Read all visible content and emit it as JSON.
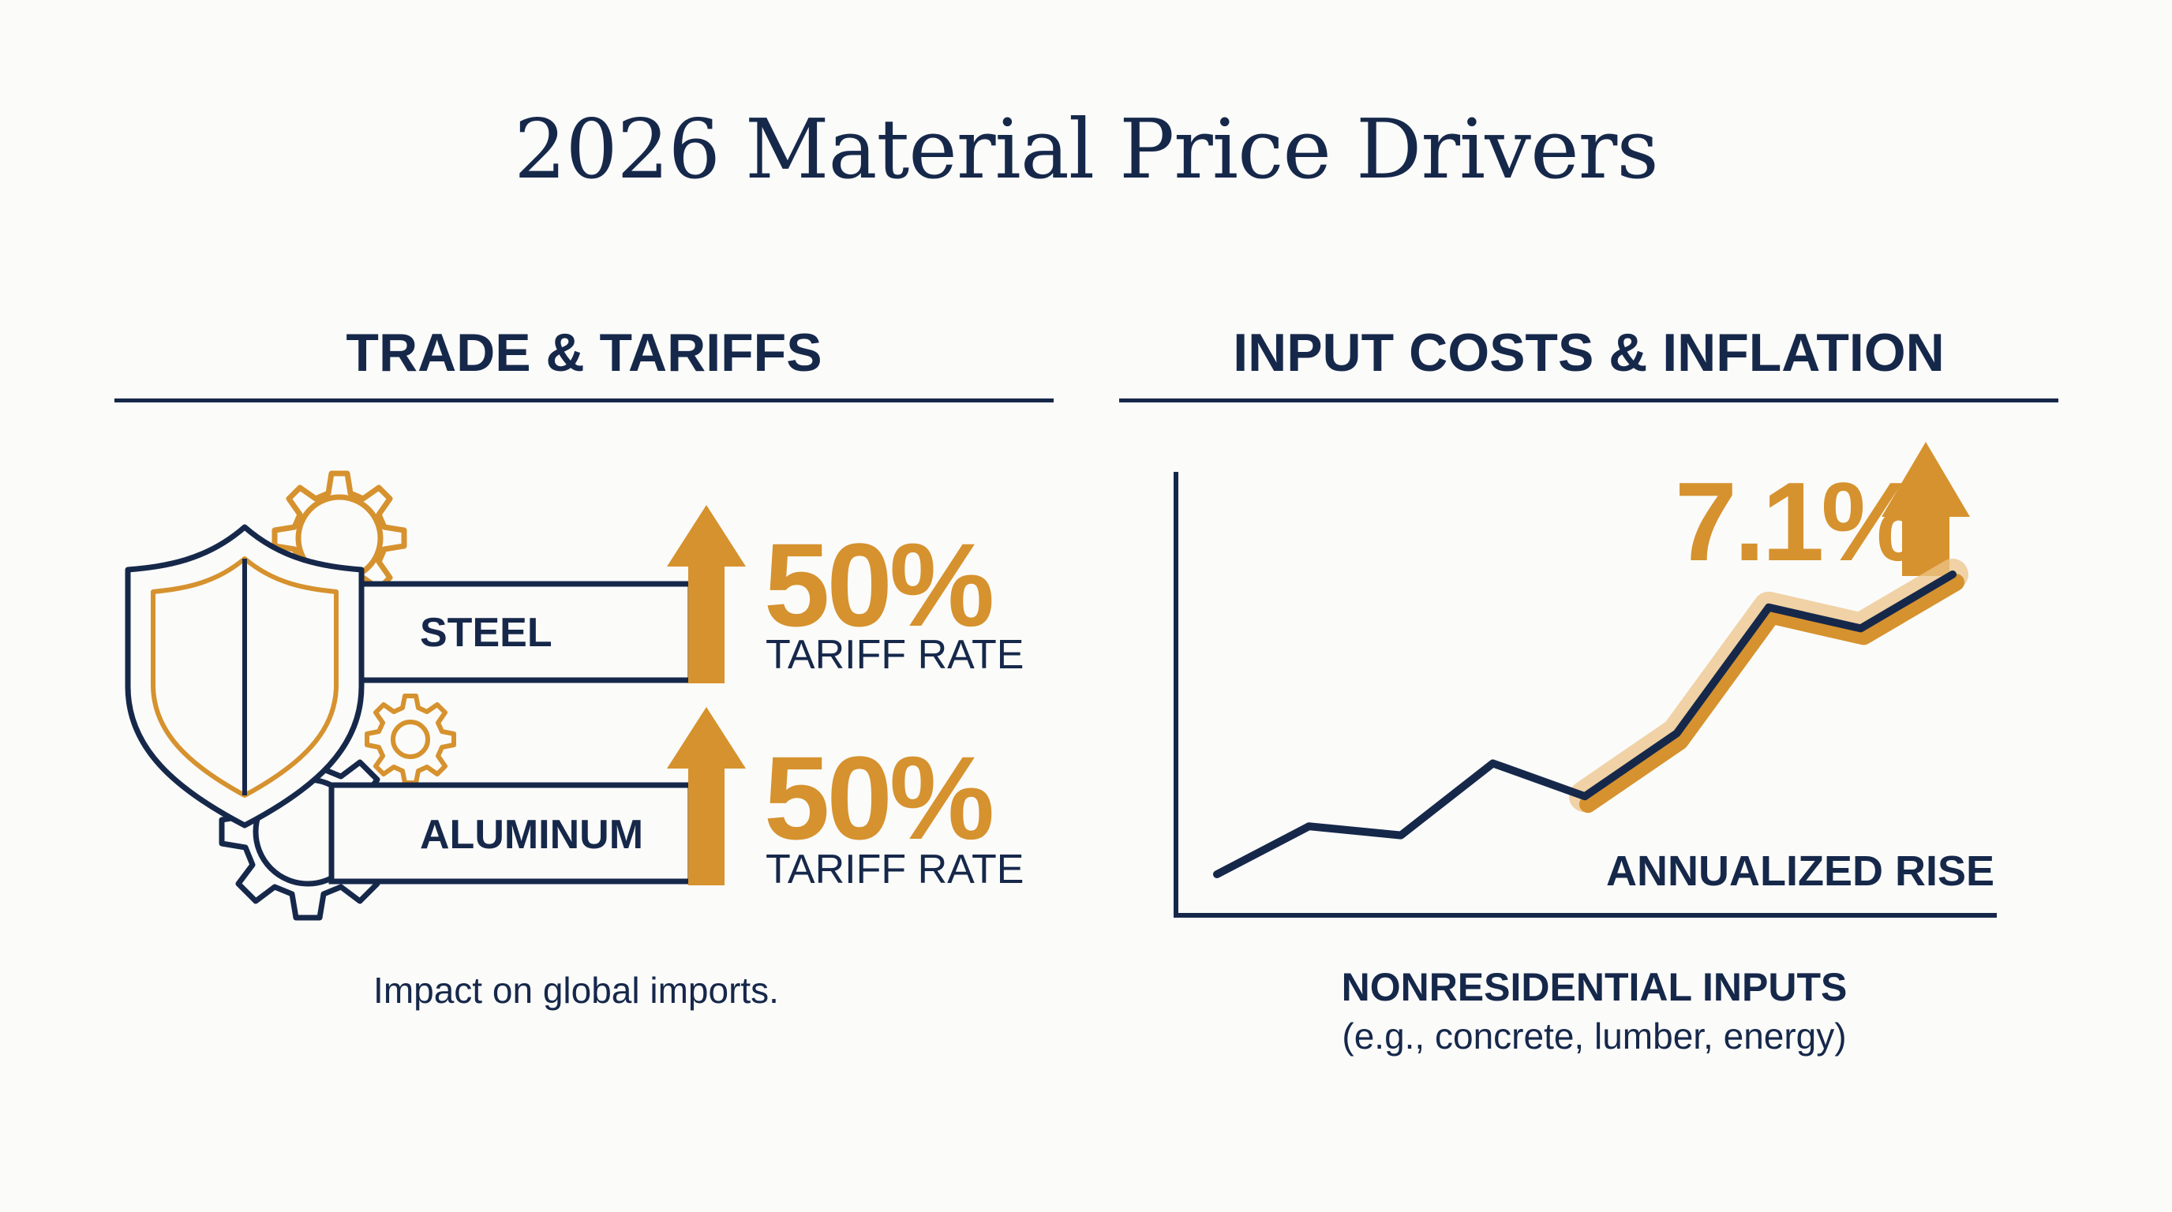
{
  "title": "2026 Material Price Drivers",
  "left_panel": {
    "heading": "TRADE & TARIFFS",
    "rows": [
      {
        "material": "STEEL",
        "percent": "50%",
        "sublabel": "TARIFF RATE"
      },
      {
        "material": "ALUMINUM",
        "percent": "50%",
        "sublabel": "TARIFF RATE"
      }
    ],
    "caption": "Impact on global imports.",
    "icons": [
      "shield-icon",
      "gear-icon",
      "up-arrow-icon"
    ]
  },
  "right_panel": {
    "heading": "INPUT COSTS & INFLATION",
    "percent": "7.1%",
    "annotation": "ANNUALIZED RISE",
    "caption_title": "NONRESIDENTIAL INPUTS",
    "caption_sub": "(e.g., concrete, lumber, energy)"
  },
  "chart_data": {
    "type": "line",
    "title": "",
    "xlabel": "",
    "ylabel": "",
    "series": [
      {
        "values": [
          0.0,
          0.16,
          0.13,
          0.37,
          0.26,
          0.47,
          0.89,
          0.82,
          1.0
        ]
      }
    ],
    "highlighted_segment_start_index": 4,
    "grid": false
  },
  "colors": {
    "navy": "#16284a",
    "gold": "#d6922e",
    "gold_glow": "#ecc48a",
    "background": "#fbfbfa"
  }
}
